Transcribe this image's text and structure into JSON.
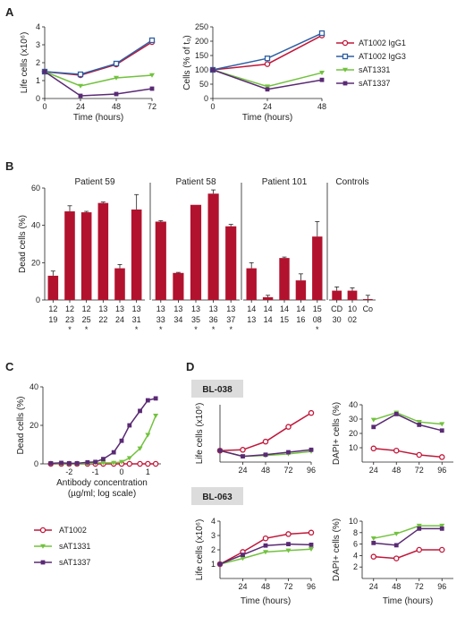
{
  "colors": {
    "AT1002 IgG1": "#c0183a",
    "AT1002 IgG3": "#2d5fa3",
    "sAT1331": "#72c23e",
    "sAT1337": "#5a2a74",
    "AT1002": "#c0183a",
    "bar": "#b2122e",
    "axis": "#222222",
    "tagbg": "#dcdcdc"
  },
  "panels": {
    "A": "A",
    "B": "B",
    "C": "C",
    "D": "D"
  },
  "chart_data": [
    {
      "id": "A1",
      "type": "line",
      "xlabel": "Time (hours)",
      "ylabel": "Life cells (x10⁶)",
      "xlim": [
        0,
        72
      ],
      "ylim": [
        0,
        4
      ],
      "xticks": [
        "0",
        "24",
        "48",
        "72"
      ],
      "yticks": [
        "0",
        "1",
        "2",
        "3",
        "4"
      ],
      "x": [
        0,
        24,
        48,
        72
      ],
      "series": [
        {
          "name": "AT1002 IgG1",
          "marker": "circle",
          "values": [
            1.5,
            1.3,
            1.9,
            3.15
          ]
        },
        {
          "name": "AT1002 IgG3",
          "marker": "square",
          "values": [
            1.5,
            1.35,
            1.95,
            3.25
          ]
        },
        {
          "name": "sAT1331",
          "marker": "triangle",
          "values": [
            1.5,
            0.7,
            1.15,
            1.3
          ]
        },
        {
          "name": "sAT1337",
          "marker": "square-filled",
          "values": [
            1.5,
            0.15,
            0.25,
            0.55
          ]
        }
      ]
    },
    {
      "id": "A2",
      "type": "line",
      "xlabel": "Time (hours)",
      "ylabel": "Cells (% of t₀)",
      "xlim": [
        0,
        48
      ],
      "ylim": [
        0,
        250
      ],
      "xticks": [
        "0",
        "24",
        "48"
      ],
      "yticks": [
        "0",
        "50",
        "100",
        "150",
        "200",
        "250"
      ],
      "x": [
        0,
        24,
        48
      ],
      "series": [
        {
          "name": "AT1002 IgG1",
          "marker": "circle",
          "values": [
            100,
            120,
            220
          ]
        },
        {
          "name": "AT1002 IgG3",
          "marker": "square",
          "values": [
            100,
            140,
            228
          ]
        },
        {
          "name": "sAT1331",
          "marker": "triangle",
          "values": [
            100,
            42,
            90
          ]
        },
        {
          "name": "sAT1337",
          "marker": "square-filled",
          "values": [
            100,
            32,
            65
          ]
        }
      ],
      "legend": [
        "AT1002 IgG1",
        "AT1002 IgG3",
        "sAT1331",
        "sAT1337"
      ],
      "legend_position": "right"
    },
    {
      "id": "B",
      "type": "bar",
      "ylabel": "Dead cells (%)",
      "ylim": [
        0,
        60
      ],
      "yticks": [
        "0",
        "20",
        "40",
        "60"
      ],
      "groups": [
        {
          "name": "Patient 59",
          "bars": [
            {
              "l1": "12",
              "l2": "19",
              "value": 13,
              "err": 2.5,
              "star": false
            },
            {
              "l1": "12",
              "l2": "23",
              "value": 47.5,
              "err": 3,
              "star": true
            },
            {
              "l1": "12",
              "l2": "25",
              "value": 47,
              "err": 0.5,
              "star": true
            },
            {
              "l1": "13",
              "l2": "22",
              "value": 52,
              "err": 0.5,
              "star": false
            },
            {
              "l1": "13",
              "l2": "24",
              "value": 17,
              "err": 2,
              "star": false
            },
            {
              "l1": "13",
              "l2": "31",
              "value": 48.5,
              "err": 8,
              "star": true
            }
          ]
        },
        {
          "name": "Patient 58",
          "bars": [
            {
              "l1": "13",
              "l2": "33",
              "value": 42,
              "err": 0.5,
              "star": true
            },
            {
              "l1": "13",
              "l2": "34",
              "value": 14.5,
              "err": 0.3,
              "star": false
            },
            {
              "l1": "13",
              "l2": "35",
              "value": 51,
              "err": 0,
              "star": true
            },
            {
              "l1": "13",
              "l2": "36",
              "value": 57,
              "err": 2,
              "star": true
            },
            {
              "l1": "13",
              "l2": "37",
              "value": 39.5,
              "err": 1,
              "star": true
            }
          ]
        },
        {
          "name": "Patient 101",
          "bars": [
            {
              "l1": "14",
              "l2": "13",
              "value": 17,
              "err": 3,
              "star": false
            },
            {
              "l1": "14",
              "l2": "14",
              "value": 1.5,
              "err": 1,
              "star": false
            },
            {
              "l1": "14",
              "l2": "15",
              "value": 22.5,
              "err": 0.5,
              "star": false
            },
            {
              "l1": "14",
              "l2": "16",
              "value": 10.5,
              "err": 3.5,
              "star": false
            },
            {
              "l1": "15",
              "l2": "08",
              "value": 34,
              "err": 8,
              "star": true
            }
          ]
        },
        {
          "name": "Controls",
          "bars": [
            {
              "l1": "CD",
              "l2": "30",
              "value": 5,
              "err": 2,
              "star": false
            },
            {
              "l1": "10",
              "l2": "02",
              "value": 5,
              "err": 1.5,
              "star": false
            },
            {
              "l1": "Co",
              "l2": "",
              "value": 0.5,
              "err": 2,
              "star": false
            }
          ]
        }
      ]
    },
    {
      "id": "C",
      "type": "line",
      "xlabel": "Antibody concentration",
      "xlabel2": "(µg/ml; log scale)",
      "ylabel": "Dead cells (%)",
      "xlim": [
        -3,
        1.5
      ],
      "ylim": [
        0,
        40
      ],
      "xticks": [
        "-2",
        "-1",
        "0",
        "1"
      ],
      "yticks": [
        "0",
        "20",
        "40"
      ],
      "x": [
        -2.7,
        -2.3,
        -2.0,
        -1.7,
        -1.3,
        -1.0,
        -0.7,
        -0.3,
        0,
        0.3,
        0.7,
        1.0,
        1.3
      ],
      "series": [
        {
          "name": "AT1002",
          "marker": "circle",
          "values": [
            0,
            0,
            0,
            0,
            0,
            0,
            0,
            0,
            0,
            0,
            0,
            0,
            0
          ]
        },
        {
          "name": "sAT1331",
          "marker": "triangle",
          "values": [
            0.3,
            0,
            0,
            0,
            0,
            0.5,
            0.5,
            0.5,
            1,
            3,
            8,
            15,
            25
          ]
        },
        {
          "name": "sAT1337",
          "marker": "square-filled",
          "values": [
            0.3,
            0.5,
            0.3,
            0.3,
            0.8,
            1,
            2.5,
            6,
            12,
            20,
            27.5,
            33,
            34
          ]
        }
      ],
      "legend": [
        "AT1002",
        "sAT1331",
        "sAT1337"
      ]
    },
    {
      "id": "D1",
      "type": "line",
      "tag": "BL-038",
      "ylabel": "Life cells (x10⁶)",
      "xlim": [
        0,
        96
      ],
      "ylim": [
        0,
        3.5
      ],
      "xticks": [
        "24",
        "48",
        "72",
        "96"
      ],
      "yticks": [],
      "x": [
        0,
        24,
        48,
        72,
        96
      ],
      "series": [
        {
          "name": "AT1002",
          "marker": "circle",
          "values": [
            0.7,
            0.75,
            1.25,
            2.15,
            3.0
          ]
        },
        {
          "name": "sAT1331",
          "marker": "triangle",
          "values": [
            0.7,
            0.35,
            0.4,
            0.5,
            0.65
          ]
        },
        {
          "name": "sAT1337",
          "marker": "square-filled",
          "values": [
            0.7,
            0.35,
            0.45,
            0.6,
            0.75
          ]
        }
      ]
    },
    {
      "id": "D2",
      "type": "line",
      "ylabel": "DAPI+ cells (%)",
      "xlim": [
        12,
        108
      ],
      "ylim": [
        0,
        40
      ],
      "xticks": [
        "24",
        "48",
        "72",
        "96"
      ],
      "yticks": [
        "10",
        "20",
        "30",
        "40"
      ],
      "x": [
        24,
        48,
        72,
        96
      ],
      "series": [
        {
          "name": "AT1002",
          "marker": "circle",
          "values": [
            9.5,
            8,
            5,
            3.5
          ]
        },
        {
          "name": "sAT1331",
          "marker": "triangle",
          "values": [
            29.5,
            34.5,
            28,
            26.5
          ]
        },
        {
          "name": "sAT1337",
          "marker": "square-filled",
          "values": [
            24.5,
            33.5,
            26,
            22
          ]
        }
      ]
    },
    {
      "id": "D3",
      "type": "line",
      "tag": "BL-063",
      "xlabel": "Time (hours)",
      "ylabel": "Life cells (x10⁶)",
      "xlim": [
        0,
        96
      ],
      "ylim": [
        0,
        4
      ],
      "xticks": [
        "24",
        "48",
        "72",
        "96"
      ],
      "yticks": [
        "1",
        "2",
        "3",
        "4"
      ],
      "x": [
        0,
        24,
        48,
        72,
        96
      ],
      "series": [
        {
          "name": "AT1002",
          "marker": "circle",
          "values": [
            1.0,
            1.85,
            2.8,
            3.1,
            3.2
          ]
        },
        {
          "name": "sAT1331",
          "marker": "triangle",
          "values": [
            1.0,
            1.4,
            1.85,
            1.95,
            2.05
          ]
        },
        {
          "name": "sAT1337",
          "marker": "square-filled",
          "values": [
            1.0,
            1.65,
            2.3,
            2.4,
            2.35
          ]
        }
      ]
    },
    {
      "id": "D4",
      "type": "line",
      "xlabel": "Time (hours)",
      "ylabel": "DAPI+ cells (%)",
      "xlim": [
        12,
        108
      ],
      "ylim": [
        0,
        10
      ],
      "xticks": [
        "24",
        "48",
        "72",
        "96"
      ],
      "yticks": [
        "2",
        "4",
        "6",
        "8",
        "10"
      ],
      "x": [
        24,
        48,
        72,
        96
      ],
      "series": [
        {
          "name": "AT1002",
          "marker": "circle",
          "values": [
            3.8,
            3.5,
            5.0,
            5.0
          ]
        },
        {
          "name": "sAT1331",
          "marker": "triangle",
          "values": [
            7.0,
            7.8,
            9.2,
            9.2
          ]
        },
        {
          "name": "sAT1337",
          "marker": "square-filled",
          "values": [
            6.2,
            5.8,
            8.7,
            8.7
          ]
        }
      ]
    }
  ]
}
